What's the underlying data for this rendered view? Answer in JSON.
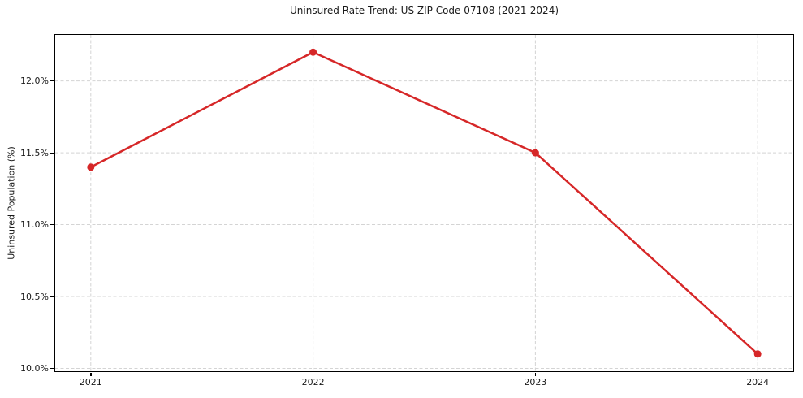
{
  "chart_data": {
    "type": "line",
    "title": "Uninsured Rate Trend: US ZIP Code 07108 (2021-2024)",
    "xlabel": "",
    "ylabel": "Uninsured Population (%)",
    "x": [
      2021,
      2022,
      2023,
      2024
    ],
    "values": [
      11.4,
      12.2,
      11.5,
      10.1
    ],
    "xticks": [
      2021,
      2022,
      2023,
      2024
    ],
    "xtick_labels": [
      "2021",
      "2022",
      "2023",
      "2024"
    ],
    "yticks": [
      10.0,
      10.5,
      11.0,
      11.5,
      12.0
    ],
    "ytick_labels": [
      "10.0%",
      "10.5%",
      "11.0%",
      "11.5%",
      "12.0%"
    ],
    "xlim": [
      2020.84,
      2024.16
    ],
    "ylim": [
      9.98,
      12.32
    ],
    "grid": true,
    "legend": "none",
    "line_color": "#d62728",
    "marker_color": "#d62728",
    "grid_color": "#d4d4d4",
    "spine_color": "#000000",
    "text_color": "#1a1a1a"
  }
}
